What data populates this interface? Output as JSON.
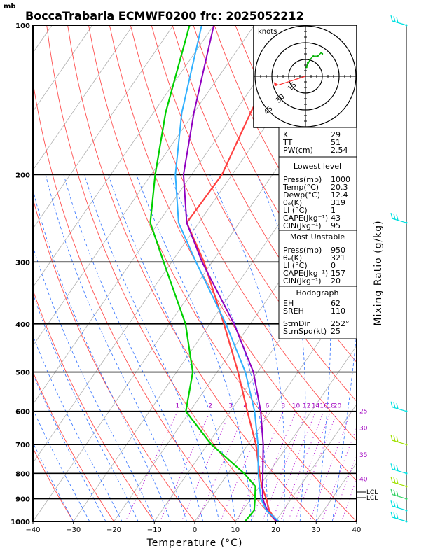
{
  "header": {
    "title": "BoccaTrabaria ECMWF0200  frc: 2025052212",
    "pressure_unit": "mb"
  },
  "chart_data": {
    "type": "skew-t",
    "xlabel": "Temperature (°C)",
    "ylabel_right": "Mixing Ratio (g/kg)",
    "x_ticks": [
      -40,
      -30,
      -20,
      -10,
      0,
      10,
      20,
      30,
      40
    ],
    "x_tick_labels": [
      "−40",
      "−30",
      "−20",
      "−10",
      "0",
      "10",
      "20",
      "30",
      "40"
    ],
    "pressure_ticks": [
      100,
      200,
      300,
      400,
      500,
      600,
      700,
      800,
      900,
      1000
    ],
    "xlim": [
      -40,
      40
    ],
    "plim": [
      1000,
      100
    ],
    "mixing_ratio_labels": [
      "1",
      "2",
      "3",
      "4",
      "6",
      "8",
      "10",
      "12",
      "14",
      "16",
      "18",
      "20",
      "25",
      "30",
      "35",
      "40"
    ],
    "lcl_labels": [
      "LCL",
      "LCL"
    ],
    "series": [
      {
        "role": "temperature",
        "color": "#ff4040",
        "points": [
          [
            1000,
            20.3
          ],
          [
            950,
            16.5
          ],
          [
            900,
            13.8
          ],
          [
            850,
            10.6
          ],
          [
            800,
            7.8
          ],
          [
            700,
            2.0
          ],
          [
            600,
            -5.8
          ],
          [
            500,
            -14.8
          ],
          [
            400,
            -26.5
          ],
          [
            300,
            -42.0
          ],
          [
            250,
            -53.0
          ],
          [
            200,
            -52.5
          ],
          [
            150,
            -56.0
          ],
          [
            100,
            -60.0
          ]
        ]
      },
      {
        "role": "dewpoint",
        "color": "#00d000",
        "points": [
          [
            1000,
            12.4
          ],
          [
            950,
            12.8
          ],
          [
            900,
            11.0
          ],
          [
            850,
            9.0
          ],
          [
            800,
            4.0
          ],
          [
            700,
            -9.0
          ],
          [
            600,
            -21.0
          ],
          [
            500,
            -26.0
          ],
          [
            400,
            -36.0
          ],
          [
            300,
            -52.0
          ],
          [
            250,
            -62.0
          ],
          [
            200,
            -69.0
          ],
          [
            150,
            -77.0
          ],
          [
            100,
            -86.0
          ]
        ]
      },
      {
        "role": "parcel",
        "color": "#9000c0",
        "points": [
          [
            1000,
            20.3
          ],
          [
            950,
            16.0
          ],
          [
            900,
            12.9
          ],
          [
            850,
            10.8
          ],
          [
            800,
            8.6
          ],
          [
            700,
            3.8
          ],
          [
            600,
            -2.5
          ],
          [
            500,
            -11.0
          ],
          [
            400,
            -24.0
          ],
          [
            300,
            -42.5
          ],
          [
            250,
            -53.0
          ],
          [
            200,
            -62.0
          ],
          [
            150,
            -70.0
          ],
          [
            100,
            -80.0
          ]
        ]
      },
      {
        "role": "virtual",
        "color": "#30b0ff",
        "points": [
          [
            1000,
            20.8
          ],
          [
            950,
            15.8
          ],
          [
            900,
            12.5
          ],
          [
            850,
            10.0
          ],
          [
            800,
            7.5
          ],
          [
            700,
            2.5
          ],
          [
            600,
            -4.0
          ],
          [
            500,
            -13.0
          ],
          [
            400,
            -26.0
          ],
          [
            300,
            -44.0
          ],
          [
            250,
            -55.0
          ],
          [
            200,
            -64.0
          ],
          [
            150,
            -73.0
          ],
          [
            100,
            -83.0
          ]
        ]
      }
    ]
  },
  "hodograph": {
    "unit_label": "knots",
    "ring_labels": [
      "15",
      "30",
      "45"
    ],
    "ring_values": [
      15,
      30,
      45
    ],
    "trace": [
      [
        2,
        12
      ],
      [
        1,
        8
      ],
      [
        4,
        15
      ],
      [
        7,
        18
      ],
      [
        11,
        18
      ],
      [
        14,
        21
      ],
      [
        15,
        20
      ]
    ],
    "storm_motion": {
      "dir": 252,
      "speed": 25
    }
  },
  "indices": {
    "top": [
      {
        "label": "K",
        "value": "29"
      },
      {
        "label": "TT",
        "value": "51"
      },
      {
        "label": "PW(cm)",
        "value": "2.54"
      }
    ],
    "lowest": {
      "title": "Lowest level",
      "rows": [
        {
          "label": "Press(mb)",
          "value": "1000"
        },
        {
          "label": "Temp(°C)",
          "value": "20.3"
        },
        {
          "label": "Dewp(°C)",
          "value": "12.4"
        },
        {
          "label": "θₑ(K)",
          "value": "319"
        },
        {
          "label": "LI (°C)",
          "value": "1"
        },
        {
          "label": "CAPE(Jkg⁻¹)",
          "value": "43"
        },
        {
          "label": "CIN(Jkg⁻¹)",
          "value": "95"
        }
      ]
    },
    "unstable": {
      "title": "Most Unstable",
      "rows": [
        {
          "label": "Press(mb)",
          "value": "950"
        },
        {
          "label": "θₑ(K)",
          "value": "321"
        },
        {
          "label": "LI (°C)",
          "value": "0"
        },
        {
          "label": "CAPE(Jkg⁻¹)",
          "value": "157"
        },
        {
          "label": "CIN(Jkg⁻¹)",
          "value": "20"
        }
      ]
    },
    "hodo": {
      "title": "Hodograph",
      "rows": [
        {
          "label": "EH",
          "value": "62"
        },
        {
          "label": "SREH",
          "value": "110"
        },
        {
          "label": "StmDir",
          "value": "252°"
        },
        {
          "label": "StmSpd(kt)",
          "value": "25"
        }
      ]
    }
  },
  "wind_colors": [
    "#00e0e0",
    "#00e0e0",
    "#00e0e0",
    "#a0e000",
    "#00e0e0",
    "#a0e000",
    "#30d060",
    "#00e0e0",
    "#00e0e0"
  ]
}
